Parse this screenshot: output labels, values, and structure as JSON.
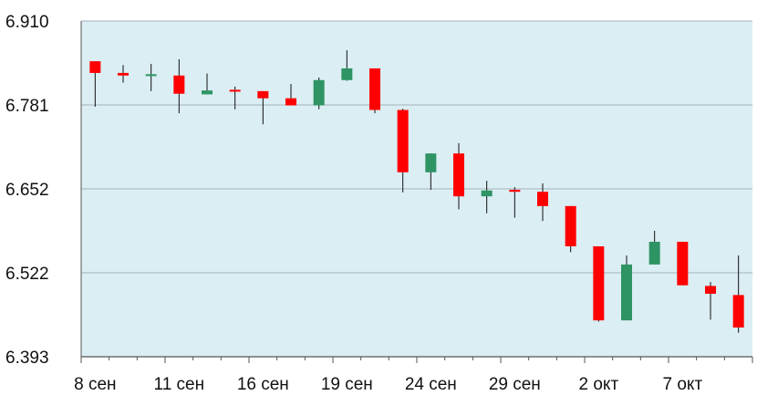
{
  "chart_data": {
    "type": "candlestick",
    "y_ticks": [
      "6.910",
      "6.781",
      "6.652",
      "6.522",
      "6.393"
    ],
    "x_tick_labels": [
      "8 сен",
      "11 сен",
      "16 сен",
      "19 сен",
      "24 сен",
      "29 сен",
      "2 окт",
      "7 окт"
    ],
    "x_tick_positions": [
      0,
      3,
      6,
      9,
      12,
      15,
      18,
      21
    ],
    "ylim": [
      6.393,
      6.91
    ],
    "grid": true,
    "colors": {
      "up": "#2e9463",
      "down": "#ff0000",
      "plot_bg": "#dbeef3",
      "grid": "#a6b3b8",
      "wick": "#111111"
    },
    "candles": [
      {
        "o": 6.848,
        "h": 6.848,
        "l": 6.778,
        "c": 6.83
      },
      {
        "o": 6.83,
        "h": 6.842,
        "l": 6.815,
        "c": 6.826
      },
      {
        "o": 6.827,
        "h": 6.844,
        "l": 6.802,
        "c": 6.828
      },
      {
        "o": 6.826,
        "h": 6.851,
        "l": 6.768,
        "c": 6.798
      },
      {
        "o": 6.797,
        "h": 6.829,
        "l": 6.797,
        "c": 6.803
      },
      {
        "o": 6.804,
        "h": 6.809,
        "l": 6.774,
        "c": 6.803
      },
      {
        "o": 6.802,
        "h": 6.802,
        "l": 6.751,
        "c": 6.791
      },
      {
        "o": 6.791,
        "h": 6.813,
        "l": 6.78,
        "c": 6.78
      },
      {
        "o": 6.78,
        "h": 6.823,
        "l": 6.774,
        "c": 6.819
      },
      {
        "o": 6.819,
        "h": 6.865,
        "l": 6.818,
        "c": 6.837
      },
      {
        "o": 6.837,
        "h": 6.837,
        "l": 6.768,
        "c": 6.773
      },
      {
        "o": 6.773,
        "h": 6.775,
        "l": 6.646,
        "c": 6.677
      },
      {
        "o": 6.677,
        "h": 6.706,
        "l": 6.65,
        "c": 6.706
      },
      {
        "o": 6.706,
        "h": 6.722,
        "l": 6.62,
        "c": 6.64
      },
      {
        "o": 6.64,
        "h": 6.664,
        "l": 6.614,
        "c": 6.649
      },
      {
        "o": 6.65,
        "h": 6.654,
        "l": 6.607,
        "c": 6.647
      },
      {
        "o": 6.647,
        "h": 6.66,
        "l": 6.602,
        "c": 6.625
      },
      {
        "o": 6.625,
        "h": 6.625,
        "l": 6.554,
        "c": 6.563
      },
      {
        "o": 6.563,
        "h": 6.563,
        "l": 6.447,
        "c": 6.449
      },
      {
        "o": 6.449,
        "h": 6.549,
        "l": 6.449,
        "c": 6.535
      },
      {
        "o": 6.535,
        "h": 6.587,
        "l": 6.535,
        "c": 6.57
      },
      {
        "o": 6.57,
        "h": 6.57,
        "l": 6.503,
        "c": 6.503
      },
      {
        "o": 6.502,
        "h": 6.508,
        "l": 6.45,
        "c": 6.49
      },
      {
        "o": 6.488,
        "h": 6.549,
        "l": 6.43,
        "c": 6.438
      }
    ]
  }
}
